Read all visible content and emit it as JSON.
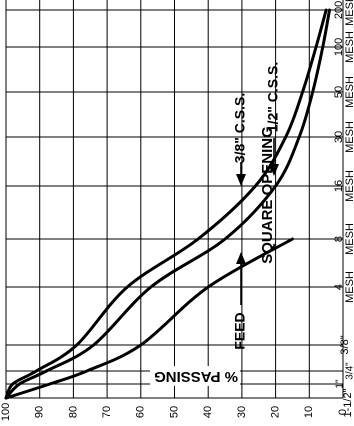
{
  "chart_data": {
    "type": "line",
    "ylabel": "% PASSING",
    "xlabel": "SQUARE OPENING",
    "y_ticks": [
      "100",
      "90",
      "80",
      "70",
      "60",
      "50",
      "40",
      "30",
      "20",
      "10",
      "0"
    ],
    "x_ticks": [
      {
        "label": "1-1/2\"",
        "sub": ""
      },
      {
        "label": "1\"",
        "sub": "3/4\""
      },
      {
        "label": "3/8\"",
        "sub": ""
      },
      {
        "label": "4",
        "sub": "MESH"
      },
      {
        "label": "8",
        "sub": "MESH"
      },
      {
        "label": "16",
        "sub": "MESH"
      },
      {
        "label": "30",
        "sub": "MESH"
      },
      {
        "label": "50",
        "sub": "MESH"
      },
      {
        "label": "100",
        "sub": "MESH"
      },
      {
        "label": "200",
        "sub": "MESH"
      }
    ],
    "ylim": [
      0,
      100
    ],
    "grid": true,
    "series": [
      {
        "name": "FEED",
        "x": [
          "1-1/2\"",
          "1\"",
          "3/4\"",
          "3/8\"",
          "4",
          "8"
        ],
        "y": [
          100,
          87,
          76,
          60,
          40,
          15
        ]
      },
      {
        "name": "1/2\" C.S.S.",
        "x": [
          "1-1/2\"",
          "1\"",
          "3/4\"",
          "3/8\"",
          "4",
          "8",
          "16",
          "30",
          "50",
          "100",
          "200"
        ],
        "y": [
          100,
          96,
          88,
          74,
          57,
          35,
          20,
          13,
          9,
          6,
          4
        ]
      },
      {
        "name": "3/8\" C.S.S.",
        "x": [
          "1-1/2\"",
          "1\"",
          "3/4\"",
          "3/8\"",
          "4",
          "8",
          "16",
          "30",
          "50",
          "100",
          "200"
        ],
        "y": [
          100,
          98,
          91,
          79,
          64,
          43,
          26,
          17,
          12,
          8,
          5
        ]
      }
    ]
  }
}
